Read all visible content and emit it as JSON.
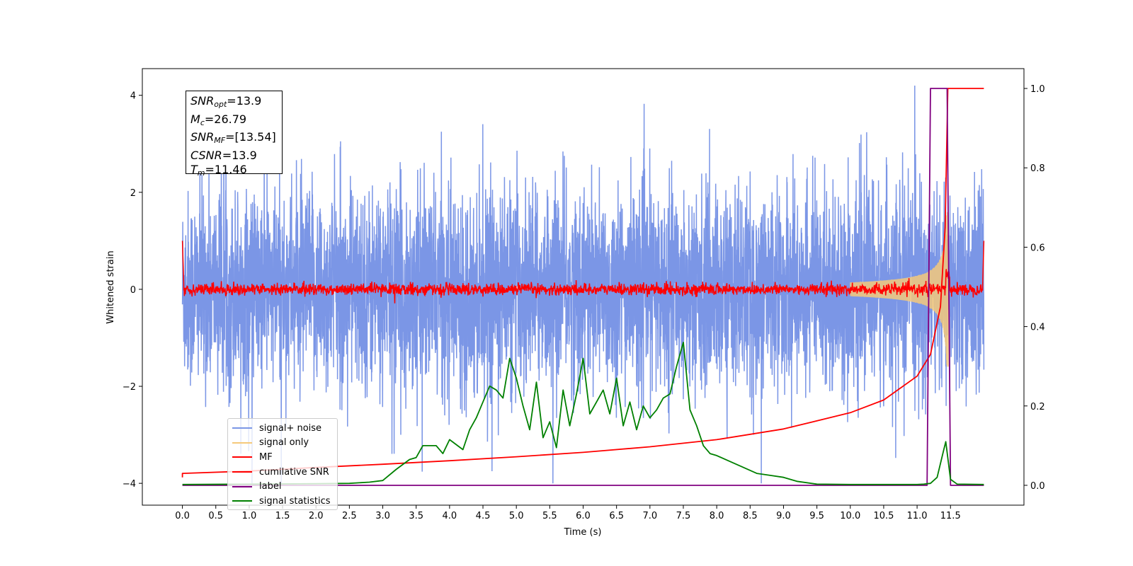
{
  "colors": {
    "signal_noise": "#7b96e6",
    "signal_only": "#f5c97a",
    "mf": "#ff0000",
    "cumulative_snr": "#ff0000",
    "label": "#800080",
    "signal_statistics": "#008000"
  },
  "annotation": {
    "snr_opt": {
      "symbol": "SNR",
      "sub": "opt",
      "value": "=13.9"
    },
    "mc": {
      "symbol": "M",
      "sub": "c",
      "value": "=26.79"
    },
    "snr_mf": {
      "symbol": "SNR",
      "sub": "MF",
      "value": "=[13.54]"
    },
    "csnr": {
      "symbol": "CSNR",
      "sub": "",
      "value": "=13.9"
    },
    "tm": {
      "symbol": "T",
      "sub": "m",
      "value": "=11.46"
    }
  },
  "chart_data": {
    "type": "line",
    "xlabel": "Time (s)",
    "ylabel": "Whitened strain",
    "xlim": [
      -0.6,
      12.6
    ],
    "ylim_left": [
      -4.45,
      4.55
    ],
    "ylim_right": [
      -0.05,
      1.05
    ],
    "x_ticks": [
      "0.0",
      "0.5",
      "1.0",
      "1.5",
      "2.0",
      "2.5",
      "3.0",
      "3.5",
      "4.0",
      "4.5",
      "5.0",
      "5.5",
      "6.0",
      "6.5",
      "7.0",
      "7.5",
      "8.0",
      "8.5",
      "9.0",
      "9.5",
      "10.0",
      "10.5",
      "11.0",
      "11.5"
    ],
    "y_ticks_left": [
      "4",
      "2",
      "0",
      "−2",
      "−4"
    ],
    "y_ticks_right": [
      "1.0",
      "0.8",
      "0.6",
      "0.4",
      "0.2",
      "0.0"
    ],
    "legend_position": "lower-left",
    "series": [
      {
        "name": "signal+ noise",
        "axis": "left",
        "description_range": [
          -4.0,
          4.2
        ]
      },
      {
        "name": "signal only",
        "axis": "left"
      },
      {
        "name": "MF",
        "axis": "left"
      },
      {
        "name": "cumilative SNR",
        "axis": "right",
        "x": [
          0.0,
          1.0,
          2.0,
          3.0,
          4.0,
          5.0,
          6.0,
          7.0,
          8.0,
          9.0,
          10.0,
          10.5,
          11.0,
          11.2,
          11.35,
          11.42,
          11.46,
          11.5,
          12.0
        ],
        "y": [
          0.03,
          0.036,
          0.045,
          0.053,
          0.062,
          0.072,
          0.083,
          0.097,
          0.115,
          0.142,
          0.183,
          0.215,
          0.275,
          0.33,
          0.45,
          0.65,
          1.0,
          1.0,
          1.0
        ]
      },
      {
        "name": "label",
        "axis": "right",
        "x": [
          0.0,
          11.15,
          11.2,
          11.45,
          11.5,
          12.0
        ],
        "y": [
          0.0,
          0.0,
          1.0,
          1.0,
          0.0,
          0.0
        ]
      },
      {
        "name": "signal statistics",
        "axis": "right",
        "x": [
          0.0,
          1.0,
          2.0,
          2.5,
          2.8,
          3.0,
          3.2,
          3.4,
          3.5,
          3.6,
          3.8,
          3.9,
          4.0,
          4.2,
          4.3,
          4.4,
          4.5,
          4.6,
          4.7,
          4.8,
          4.9,
          5.0,
          5.1,
          5.2,
          5.3,
          5.4,
          5.5,
          5.6,
          5.7,
          5.8,
          5.9,
          6.0,
          6.1,
          6.2,
          6.3,
          6.4,
          6.5,
          6.6,
          6.7,
          6.8,
          6.9,
          7.0,
          7.1,
          7.2,
          7.3,
          7.4,
          7.5,
          7.6,
          7.7,
          7.8,
          7.9,
          8.0,
          8.2,
          8.4,
          8.6,
          8.8,
          9.0,
          9.2,
          9.5,
          10.0,
          11.0,
          11.1,
          11.2,
          11.3,
          11.4,
          11.43,
          11.5,
          11.6,
          12.0
        ],
        "y": [
          0.002,
          0.003,
          0.004,
          0.005,
          0.008,
          0.012,
          0.04,
          0.065,
          0.07,
          0.1,
          0.1,
          0.08,
          0.115,
          0.09,
          0.14,
          0.17,
          0.21,
          0.25,
          0.24,
          0.22,
          0.32,
          0.27,
          0.2,
          0.14,
          0.26,
          0.12,
          0.16,
          0.095,
          0.24,
          0.15,
          0.23,
          0.32,
          0.18,
          0.21,
          0.24,
          0.18,
          0.27,
          0.15,
          0.21,
          0.14,
          0.2,
          0.17,
          0.19,
          0.22,
          0.23,
          0.3,
          0.36,
          0.19,
          0.15,
          0.1,
          0.08,
          0.075,
          0.06,
          0.045,
          0.03,
          0.025,
          0.02,
          0.01,
          0.003,
          0.002,
          0.002,
          0.003,
          0.005,
          0.02,
          0.09,
          0.11,
          0.015,
          0.003,
          0.002
        ]
      }
    ]
  }
}
